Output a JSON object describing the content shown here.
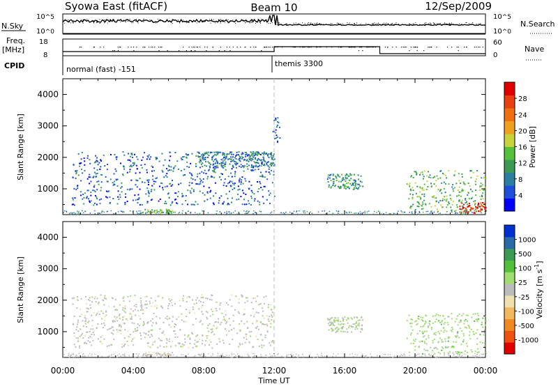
{
  "header": {
    "station": "Syowa East (fitACF)",
    "beam": "Beam 10",
    "date": "12/Sep/2009"
  },
  "sky_panel": {
    "left_label": "N.Sky",
    "right_label": "N.Search",
    "left_ticks": [
      {
        "base": "10",
        "exp": "^5"
      },
      {
        "base": "10",
        "exp": "^0"
      }
    ],
    "right_ticks": [
      {
        "base": "10",
        "exp": "^5"
      },
      {
        "base": "10",
        "exp": "^0"
      }
    ],
    "line_style": "solid (N.Sky) / dotted (N.Search)"
  },
  "freq_panel": {
    "left_label_line1": "Freq.",
    "left_label_line2": "[MHz]",
    "left_ticks": [
      "18",
      "8"
    ],
    "right_label": "Nave",
    "right_ticks": [
      "60",
      "0"
    ]
  },
  "cpid": {
    "label": "CPID",
    "modes": [
      {
        "name": "normal (fast) -151",
        "start_hour": 0
      },
      {
        "name": "themis 3300",
        "start_hour": 12
      }
    ]
  },
  "time_axis": {
    "xlabel": "Time UT",
    "xlim_hours": [
      0,
      24
    ],
    "tick_labels": [
      "00:00",
      "04:00",
      "08:00",
      "12:00",
      "16:00",
      "20:00",
      "00:00"
    ],
    "tick_hours": [
      0,
      4,
      8,
      12,
      16,
      20,
      24
    ],
    "mode_change_hour": 12
  },
  "chart_data": [
    {
      "type": "heatmap",
      "panel": "power",
      "ylabel": "Slant Range [km]",
      "ylim": [
        180,
        4500
      ],
      "y_ticks": [
        1000,
        2000,
        3000,
        4000
      ],
      "colorbar": {
        "label": "Power [dB]",
        "tick_labels": [
          "4",
          "8",
          "12",
          "16",
          "20",
          "24",
          "28"
        ],
        "range": [
          0,
          30
        ],
        "colors": [
          "#0000ff",
          "#1f4fd8",
          "#2a7fa0",
          "#3c9a55",
          "#55c03a",
          "#c8d23a",
          "#f0a020",
          "#ee7010",
          "#e84010",
          "#e00000"
        ]
      },
      "features": [
        {
          "name": "near-range band",
          "t_start": 4.5,
          "t_end": 6.2,
          "range_km": 300,
          "level": 14
        },
        {
          "name": "scattered early echoes",
          "t_start": 0.5,
          "t_end": 12,
          "range_min": 500,
          "range_max": 2200,
          "level": 6
        },
        {
          "name": "range band morning",
          "t_start": 7.5,
          "t_end": 12,
          "range_min": 1700,
          "range_max": 2200,
          "level": 8
        },
        {
          "name": "bright patch near 12UT",
          "t_start": 11.9,
          "t_end": 12.3,
          "range_min": 2500,
          "range_max": 3300,
          "level": 6
        },
        {
          "name": "afternoon 1200km band",
          "t_start": 15,
          "t_end": 17,
          "range_min": 1000,
          "range_max": 1500,
          "level": 10
        },
        {
          "name": "evening multi-band echoes",
          "t_start": 19.5,
          "t_end": 24,
          "range_min": 300,
          "range_max": 1600,
          "level": 12
        },
        {
          "name": "strong late near-range echoes",
          "t_start": 22.5,
          "t_end": 24,
          "range_min": 180,
          "range_max": 600,
          "level": 26
        }
      ]
    },
    {
      "type": "heatmap",
      "panel": "velocity",
      "ylabel": "Slant Range [km]",
      "ylim": [
        180,
        4500
      ],
      "y_ticks": [
        1000,
        2000,
        3000,
        4000
      ],
      "colorbar": {
        "label": "Velocity [m s^-1]",
        "tick_labels": [
          "1000",
          "500",
          "100",
          "25",
          "-25",
          "-100",
          "-500",
          "-1000"
        ],
        "range": [
          -1200,
          1200
        ],
        "colors": [
          "#e00000",
          "#ee5010",
          "#f08a20",
          "#f2b860",
          "#efe0b0",
          "#bcbcbc",
          "#a0dc70",
          "#52c03a",
          "#3c9a55",
          "#2a6aa8",
          "#0030d0"
        ]
      },
      "features": [
        {
          "name": "near-range negative echoes",
          "t_start": 4.5,
          "t_end": 6.2,
          "range_km": 300,
          "velocity": -100
        },
        {
          "name": "scattered early echoes",
          "t_start": 0.5,
          "t_end": 12,
          "range_min": 500,
          "range_max": 2200,
          "velocity": 0
        },
        {
          "name": "afternoon echoes",
          "t_start": 15,
          "t_end": 17,
          "range_min": 1000,
          "range_max": 1500,
          "velocity": 100
        },
        {
          "name": "evening mixed echoes",
          "t_start": 19.5,
          "t_end": 24,
          "range_min": 300,
          "range_max": 1600,
          "velocity": 200
        }
      ]
    }
  ]
}
